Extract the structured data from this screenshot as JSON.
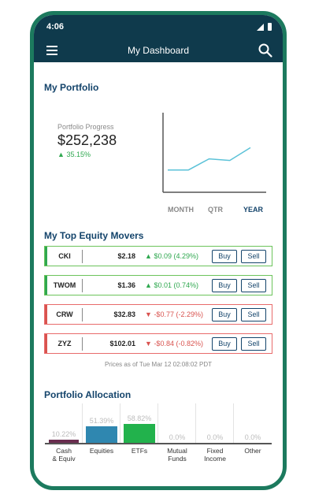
{
  "status": {
    "time": "4:06"
  },
  "appbar": {
    "title": "My Dashboard",
    "menu_icon": "hamburger-menu-icon",
    "search_icon": "search-icon"
  },
  "portfolio": {
    "title": "My Portfolio",
    "progress_label": "Portfolio Progress",
    "value": "$252,238",
    "change": "35.15%",
    "ranges": [
      "MONTH",
      "QTR",
      "YEAR"
    ],
    "active_range": "YEAR",
    "chart_data": {
      "type": "line",
      "series": [
        {
          "values": [
            0.28,
            0.28,
            0.42,
            0.4,
            0.56
          ]
        }
      ],
      "grid": false,
      "color": "#5bc2d8"
    }
  },
  "movers": {
    "title": "My Top Equity Movers",
    "rows": [
      {
        "symbol": "CKI",
        "price": "$2.18",
        "change": "$0.09 (4.29%)",
        "direction": "up",
        "buy": "Buy",
        "sell": "Sell"
      },
      {
        "symbol": "TWOM",
        "price": "$1.36",
        "change": "$0.01 (0.74%)",
        "direction": "up",
        "buy": "Buy",
        "sell": "Sell"
      },
      {
        "symbol": "CRW",
        "price": "$32.83",
        "change": "-$0.77 (-2.29%)",
        "direction": "down",
        "buy": "Buy",
        "sell": "Sell"
      },
      {
        "symbol": "ZYZ",
        "price": "$102.01",
        "change": "-$0.84 (-0.82%)",
        "direction": "down",
        "buy": "Buy",
        "sell": "Sell"
      }
    ],
    "prices_note": "Prices as of Tue Mar 12 02:08:02 PDT",
    "colors": {
      "up": "#2fa84f",
      "down": "#d9534f"
    }
  },
  "allocation": {
    "title": "Portfolio Allocation",
    "items": [
      {
        "label_lines": [
          "Cash",
          "& Equiv"
        ],
        "value": "10.22%",
        "percent": 10.22,
        "color": "#6a2d4f"
      },
      {
        "label_lines": [
          "Equities"
        ],
        "value": "51.39%",
        "percent": 51.39,
        "color": "#2f87b0"
      },
      {
        "label_lines": [
          "ETFs"
        ],
        "value": "58.82%",
        "percent": 58.82,
        "color": "#22b24c"
      },
      {
        "label_lines": [
          "Mutual",
          "Funds"
        ],
        "value": "0.0%",
        "percent": 0,
        "color": "#cccccc"
      },
      {
        "label_lines": [
          "Fixed",
          "Income"
        ],
        "value": "0.0%",
        "percent": 0,
        "color": "#cccccc"
      },
      {
        "label_lines": [
          "Other"
        ],
        "value": "0.0%",
        "percent": 0,
        "color": "#cccccc"
      }
    ]
  }
}
